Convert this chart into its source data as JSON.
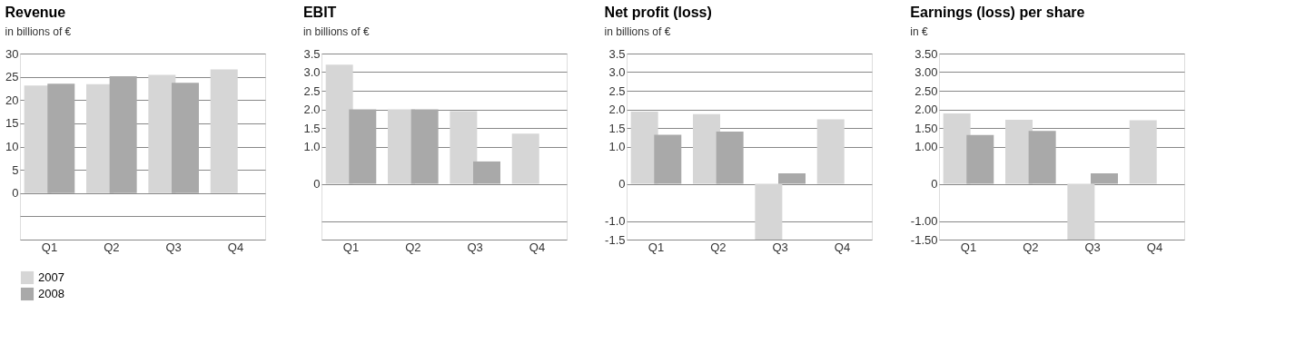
{
  "chart_data": [
    {
      "type": "bar",
      "title": "Revenue",
      "subtitle": "in billions of €",
      "categories": [
        "Q1",
        "Q2",
        "Q3",
        "Q4"
      ],
      "series": [
        {
          "name": "2007",
          "color": "#d6d6d6",
          "values": [
            23.1,
            23.4,
            25.4,
            26.6
          ]
        },
        {
          "name": "2008",
          "color": "#a9a9a9",
          "values": [
            23.5,
            25.1,
            23.7,
            null
          ]
        }
      ],
      "ylim": [
        -10,
        30
      ],
      "yticks": [
        {
          "value": -10,
          "label": null
        },
        {
          "value": -5,
          "label": null
        },
        0,
        5,
        10,
        15,
        20,
        25,
        30
      ],
      "grid": "y",
      "legend": "bottom left"
    },
    {
      "type": "bar",
      "title": "EBIT",
      "subtitle": "in billions of €",
      "categories": [
        "Q1",
        "Q2",
        "Q3",
        "Q4"
      ],
      "series": [
        {
          "name": "2007",
          "color": "#d6d6d6",
          "values": [
            3.2,
            2.0,
            1.95,
            1.35
          ]
        },
        {
          "name": "2008",
          "color": "#a9a9a9",
          "values": [
            2.0,
            2.0,
            0.6,
            null
          ]
        }
      ],
      "ylim": [
        -1.5,
        3.5
      ],
      "yticks": [
        {
          "value": -1.5,
          "label": null
        },
        {
          "value": -1.0,
          "label": null
        },
        0,
        {
          "value": 1.0,
          "label": "1.0"
        },
        1.5,
        {
          "value": 2.0,
          "label": "2.0"
        },
        2.5,
        {
          "value": 3.0,
          "label": "3.0"
        },
        3.5
      ],
      "grid": "y",
      "legend": false
    },
    {
      "type": "bar",
      "title": "Net profit (loss)",
      "subtitle": "in billions of €",
      "categories": [
        "Q1",
        "Q2",
        "Q3",
        "Q4"
      ],
      "series": [
        {
          "name": "2007",
          "color": "#d6d6d6",
          "values": [
            1.94,
            1.87,
            -1.5,
            1.73
          ]
        },
        {
          "name": "2008",
          "color": "#a9a9a9",
          "values": [
            1.32,
            1.4,
            0.28,
            null
          ]
        }
      ],
      "ylim": [
        -1.5,
        3.5
      ],
      "yticks": [
        -1.5,
        {
          "value": -1.0,
          "label": "-1.0"
        },
        0,
        {
          "value": 1.0,
          "label": "1.0"
        },
        1.5,
        {
          "value": 2.0,
          "label": "2.0"
        },
        2.5,
        {
          "value": 3.0,
          "label": "3.0"
        },
        3.5
      ],
      "grid": "y",
      "legend": false
    },
    {
      "type": "bar",
      "title": "Earnings (loss) per share",
      "subtitle": "in €",
      "categories": [
        "Q1",
        "Q2",
        "Q3",
        "Q4"
      ],
      "series": [
        {
          "name": "2007",
          "color": "#d6d6d6",
          "values": [
            1.89,
            1.72,
            -1.5,
            1.71
          ]
        },
        {
          "name": "2008",
          "color": "#a9a9a9",
          "values": [
            1.31,
            1.42,
            0.28,
            null
          ]
        }
      ],
      "ylim": [
        -1.5,
        3.5
      ],
      "yticks": [
        {
          "value": -1.5,
          "label": "-1.50"
        },
        {
          "value": -1.0,
          "label": "-1.00"
        },
        0,
        {
          "value": 1.0,
          "label": "1.00"
        },
        {
          "value": 1.5,
          "label": "1.50"
        },
        {
          "value": 2.0,
          "label": "2.00"
        },
        {
          "value": 2.5,
          "label": "2.50"
        },
        {
          "value": 3.0,
          "label": "3.00"
        },
        {
          "value": 3.5,
          "label": "3.50"
        }
      ],
      "grid": "y",
      "legend": false
    }
  ]
}
